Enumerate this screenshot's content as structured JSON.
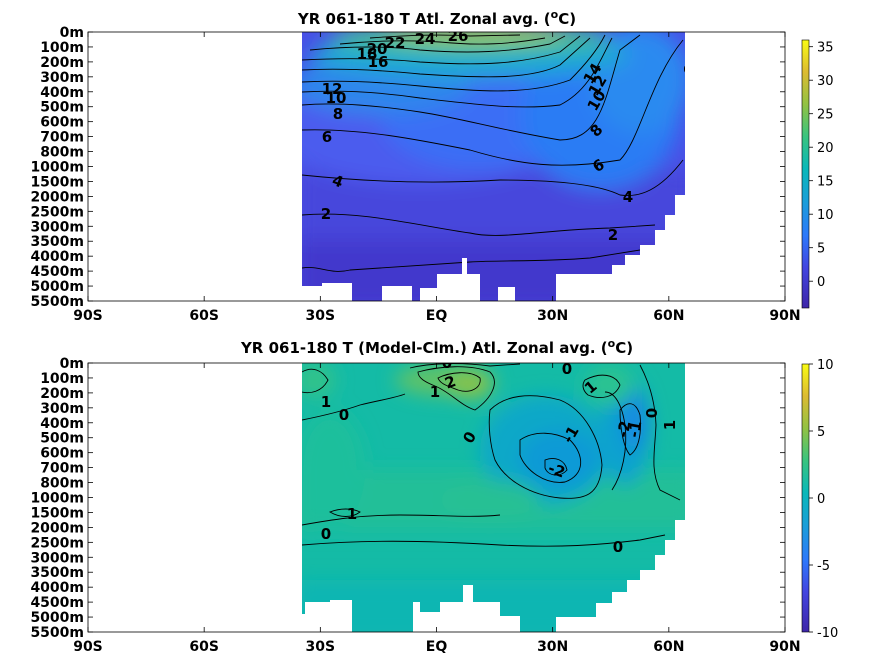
{
  "chart_data": [
    {
      "type": "heatmap",
      "title": "YR 061-180 T Atl. Zonal avg. (",
      "title_sup": "o",
      "title_tail": "C)",
      "x_ticks": [
        "90S",
        "60S",
        "30S",
        "EQ",
        "30N",
        "60N",
        "90N"
      ],
      "x_tick_values": [
        -90,
        -60,
        -30,
        0,
        30,
        60,
        90
      ],
      "y_ticks": [
        "0m",
        "100m",
        "200m",
        "300m",
        "400m",
        "500m",
        "600m",
        "700m",
        "800m",
        "1000m",
        "1500m",
        "2000m",
        "2500m",
        "3000m",
        "3500m",
        "4000m",
        "4500m",
        "5000m",
        "5500m"
      ],
      "colorbar": {
        "ticks": [
          "35",
          "30",
          "25",
          "20",
          "15",
          "10",
          "5",
          "0"
        ],
        "tick_values": [
          35,
          30,
          25,
          20,
          15,
          10,
          5,
          0
        ],
        "range": [
          -4,
          36
        ]
      },
      "contour_labels": [
        {
          "text": "26",
          "lat": 3,
          "depth": "0m-100m"
        },
        {
          "text": "24",
          "lat": -3,
          "depth": "0m-100m"
        },
        {
          "text": "22",
          "lat": -11,
          "depth": "100m"
        },
        {
          "text": "20",
          "lat": -15,
          "depth": "100m"
        },
        {
          "text": "18",
          "lat": -19,
          "depth": "100m-200m"
        },
        {
          "text": "16",
          "lat": -17,
          "depth": "200m"
        },
        {
          "text": "14",
          "lat": 48,
          "depth": "300m"
        },
        {
          "text": "12",
          "lat": -29,
          "depth": "400m"
        },
        {
          "text": "12",
          "lat": 49,
          "depth": "300m-400m"
        },
        {
          "text": "10",
          "lat": -28,
          "depth": "500m"
        },
        {
          "text": "10",
          "lat": 47,
          "depth": "500m"
        },
        {
          "text": "9",
          "lat": 62,
          "depth": "200m-300m"
        },
        {
          "text": "8",
          "lat": -27,
          "depth": "600m"
        },
        {
          "text": "8",
          "lat": 46,
          "depth": "700m"
        },
        {
          "text": "6",
          "lat": -31,
          "depth": "700m"
        },
        {
          "text": "6",
          "lat": 45,
          "depth": "1000m"
        },
        {
          "text": "4",
          "lat": -28,
          "depth": "1500m"
        },
        {
          "text": "4",
          "lat": 50,
          "depth": "2000m"
        },
        {
          "text": "2",
          "lat": -31,
          "depth": "2500m"
        },
        {
          "text": "2",
          "lat": 42,
          "depth": "3500m"
        }
      ]
    },
    {
      "type": "heatmap",
      "title": "YR 061-180 T (Model-Clm.) Atl. Zonal avg. (",
      "title_sup": "o",
      "title_tail": "C)",
      "x_ticks": [
        "90S",
        "60S",
        "30S",
        "EQ",
        "30N",
        "60N",
        "90N"
      ],
      "x_tick_values": [
        -90,
        -60,
        -30,
        0,
        30,
        60,
        90
      ],
      "y_ticks": [
        "0m",
        "100m",
        "200m",
        "300m",
        "400m",
        "500m",
        "600m",
        "700m",
        "800m",
        "1000m",
        "1500m",
        "2000m",
        "2500m",
        "3000m",
        "3500m",
        "4000m",
        "4500m",
        "5000m",
        "5500m"
      ],
      "colorbar": {
        "ticks": [
          "10",
          "5",
          "0",
          "-5",
          "-10"
        ],
        "tick_values": [
          10,
          5,
          0,
          -5,
          -10
        ],
        "range": [
          -10,
          10
        ]
      },
      "contour_labels": [
        {
          "text": "0",
          "lat": 1,
          "depth": "0m"
        },
        {
          "text": "2",
          "lat": 2,
          "depth": "100m-200m"
        },
        {
          "text": "1",
          "lat": 0,
          "depth": "200m"
        },
        {
          "text": "0",
          "lat": 34,
          "depth": "100m"
        },
        {
          "text": "1",
          "lat": 42,
          "depth": "200m"
        },
        {
          "text": "1",
          "lat": -30,
          "depth": "300m"
        },
        {
          "text": "0",
          "lat": -25,
          "depth": "400m"
        },
        {
          "text": "0",
          "lat": 9,
          "depth": "500m"
        },
        {
          "text": "-1",
          "lat": 35,
          "depth": "500m"
        },
        {
          "text": "-2",
          "lat": 48,
          "depth": "400m-500m"
        },
        {
          "text": "-1",
          "lat": 50,
          "depth": "400m-500m"
        },
        {
          "text": "0",
          "lat": 53,
          "depth": "300m"
        },
        {
          "text": "1",
          "lat": 60,
          "depth": "500m"
        },
        {
          "text": "-2",
          "lat": 29,
          "depth": "700m"
        },
        {
          "text": "1",
          "lat": -22,
          "depth": "1500m"
        },
        {
          "text": "0",
          "lat": -30,
          "depth": "2500m"
        },
        {
          "text": "0",
          "lat": 45,
          "depth": "3000m"
        }
      ]
    }
  ]
}
